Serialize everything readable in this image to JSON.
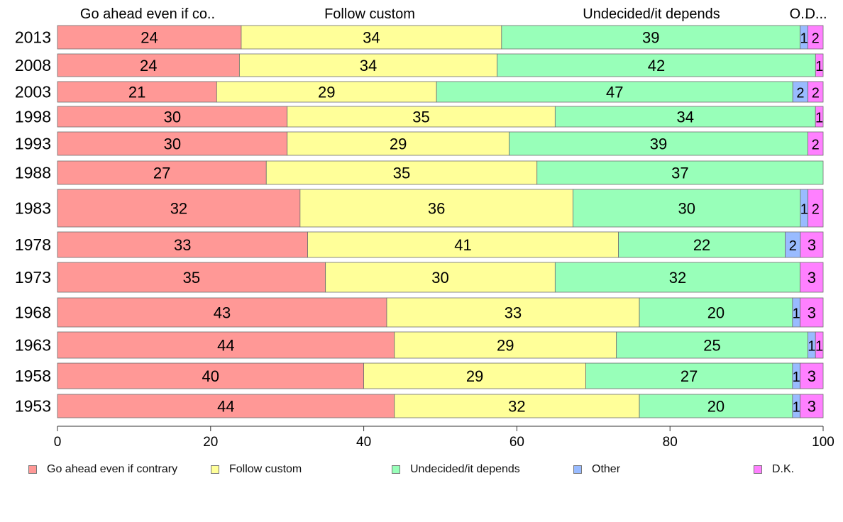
{
  "chart_data": {
    "type": "bar",
    "orientation": "horizontal",
    "stacked": true,
    "categories": [
      "2013",
      "2008",
      "2003",
      "1998",
      "1993",
      "1988",
      "1983",
      "1978",
      "1973",
      "1968",
      "1963",
      "1958",
      "1953"
    ],
    "series": [
      {
        "name": "Go ahead even if contrary",
        "header": "Go ahead even if co..",
        "color": "#ff9896",
        "values": [
          24,
          24,
          21,
          30,
          30,
          27,
          32,
          33,
          35,
          43,
          44,
          40,
          44
        ]
      },
      {
        "name": "Follow custom",
        "header": "Follow custom",
        "color": "#ffff99",
        "values": [
          34,
          34,
          29,
          35,
          29,
          35,
          36,
          41,
          30,
          33,
          29,
          29,
          32
        ]
      },
      {
        "name": "Undecided/it depends",
        "header": "Undecided/it depends",
        "color": "#98ffb9",
        "values": [
          39,
          42,
          47,
          34,
          39,
          37,
          30,
          22,
          32,
          20,
          25,
          27,
          20
        ]
      },
      {
        "name": "Other",
        "header": "O..",
        "color": "#99bbff",
        "values": [
          1,
          0,
          2,
          0,
          0,
          0,
          1,
          2,
          0,
          1,
          1,
          1,
          1
        ]
      },
      {
        "name": "D.K.",
        "header": "D...",
        "color": "#ff80ff",
        "values": [
          2,
          1,
          2,
          1,
          2,
          0,
          2,
          3,
          3,
          3,
          1,
          3,
          3
        ]
      }
    ],
    "segment_label_text": [
      [
        "24",
        "34",
        "39",
        "1",
        "2"
      ],
      [
        "24",
        "34",
        "42",
        "",
        "1"
      ],
      [
        "21",
        "29",
        "47",
        "2",
        "2"
      ],
      [
        "30",
        "35",
        "34",
        "",
        "1"
      ],
      [
        "30",
        "29",
        "39",
        "",
        "2"
      ],
      [
        "27",
        "35",
        "37",
        "",
        ""
      ],
      [
        "32",
        "36",
        "30",
        "1",
        "2"
      ],
      [
        "33",
        "41",
        "22",
        "2",
        "3"
      ],
      [
        "35",
        "30",
        "32",
        "",
        "3"
      ],
      [
        "43",
        "33",
        "20",
        "1",
        "3"
      ],
      [
        "44",
        "29",
        "25",
        "1",
        "1"
      ],
      [
        "40",
        "29",
        "27",
        "1",
        "3"
      ],
      [
        "44",
        "32",
        "20",
        "1",
        "3"
      ]
    ],
    "xlim": [
      0,
      100
    ],
    "xticks": [
      "0",
      "20",
      "40",
      "60",
      "80",
      "100"
    ],
    "grid": false,
    "legend_position": "bottom"
  }
}
